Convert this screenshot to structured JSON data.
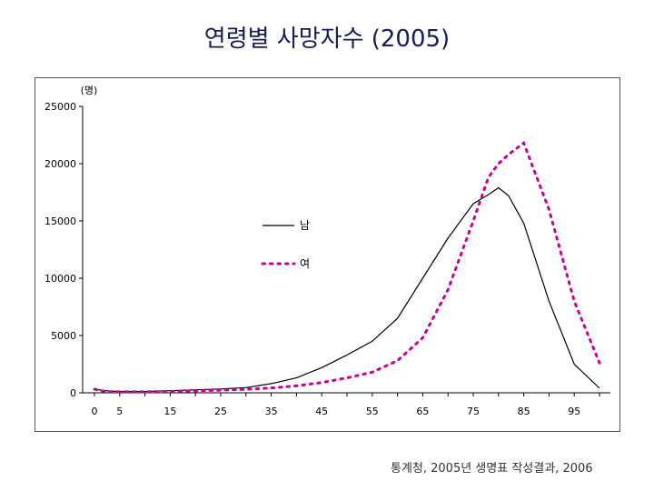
{
  "title": "연령별 사망자수 (2005)",
  "source": "통계청, 2005년 생명표 작성결과, 2006",
  "chart_data": {
    "type": "line",
    "title": "연령별 사망자수 (2005)",
    "xlabel": "",
    "ylabel": "(명)",
    "xlim": [
      0,
      100
    ],
    "ylim": [
      0,
      25000
    ],
    "xticks": [
      0,
      5,
      15,
      25,
      35,
      45,
      55,
      65,
      75,
      85,
      95
    ],
    "yticks": [
      0,
      5000,
      10000,
      15000,
      20000,
      25000
    ],
    "grid": false,
    "legend_placement": "center-left",
    "series": [
      {
        "name": "남",
        "style": "solid",
        "color": "#000000",
        "x": [
          0,
          1,
          3,
          5,
          10,
          15,
          20,
          25,
          30,
          35,
          40,
          45,
          50,
          55,
          60,
          65,
          70,
          75,
          78,
          80,
          82,
          85,
          90,
          95,
          100
        ],
        "y": [
          400,
          250,
          150,
          120,
          120,
          180,
          260,
          330,
          450,
          800,
          1300,
          2200,
          3300,
          4500,
          6500,
          10000,
          13500,
          16500,
          17300,
          17900,
          17200,
          14800,
          8000,
          2500,
          400
        ]
      },
      {
        "name": "여",
        "style": "dotted",
        "color": "#cc0099",
        "x": [
          0,
          1,
          3,
          5,
          10,
          15,
          20,
          25,
          30,
          35,
          40,
          45,
          50,
          55,
          60,
          65,
          70,
          75,
          78,
          80,
          82,
          85,
          90,
          95,
          100
        ],
        "y": [
          320,
          180,
          100,
          90,
          90,
          120,
          170,
          230,
          300,
          420,
          600,
          900,
          1300,
          1800,
          2800,
          4800,
          9000,
          15000,
          18800,
          20000,
          20800,
          21800,
          16000,
          8000,
          2600
        ]
      }
    ]
  }
}
